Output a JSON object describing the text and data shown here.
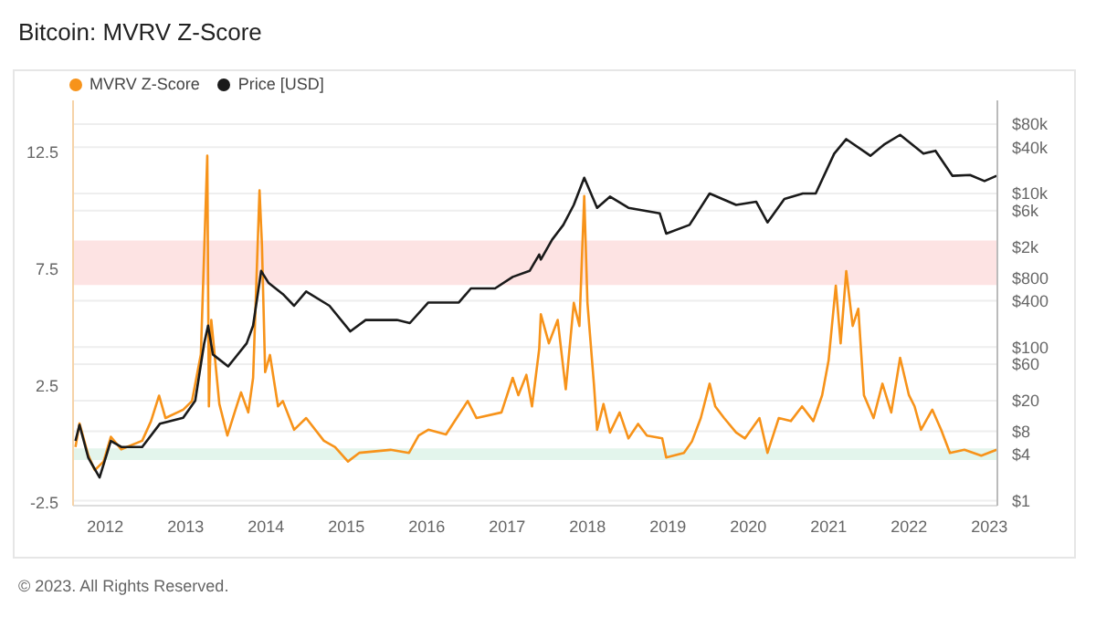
{
  "chart_data": {
    "type": "line",
    "title": "Bitcoin: MVRV Z-Score",
    "annotations": [
      "© 2023. All Rights Reserved."
    ],
    "xlim": [
      2011.6,
      2023.1
    ],
    "xticks": [
      2012,
      2013,
      2014,
      2015,
      2016,
      2017,
      2018,
      2019,
      2020,
      2021,
      2022,
      2023
    ],
    "ylim": [
      -2.65,
      14.7
    ],
    "yticks": [
      -2.5,
      2.5,
      7.5,
      12.5
    ],
    "y2lim": [
      0.86,
      163000
    ],
    "y2ticks": [
      {
        "value": 1,
        "label": "$1"
      },
      {
        "value": 4,
        "label": "$4"
      },
      {
        "value": 8,
        "label": "$8"
      },
      {
        "value": 20,
        "label": "$20"
      },
      {
        "value": 60,
        "label": "$60"
      },
      {
        "value": 100,
        "label": "$100"
      },
      {
        "value": 400,
        "label": "$400"
      },
      {
        "value": 800,
        "label": "$800"
      },
      {
        "value": 2000,
        "label": "$2k"
      },
      {
        "value": 6000,
        "label": "$6k"
      },
      {
        "value": 10000,
        "label": "$10k"
      },
      {
        "value": 40000,
        "label": "$40k"
      },
      {
        "value": 80000,
        "label": "$80k"
      }
    ],
    "log": "y2",
    "grid": "y",
    "legend": "top left",
    "marker": "none",
    "line_style": "solid",
    "bands": [
      {
        "axis": "y",
        "from": 6.8,
        "to": 8.7,
        "color": "#fde3e3"
      },
      {
        "axis": "y",
        "from": -0.7,
        "to": -0.2,
        "color": "#e3f5ec"
      }
    ],
    "series": [
      {
        "name": "MVRV Z-Score",
        "color": "#f7931a",
        "axis": "y",
        "x": [
          2011.63,
          2011.68,
          2011.79,
          2011.87,
          2011.98,
          2012.07,
          2012.2,
          2012.46,
          2012.57,
          2012.67,
          2012.75,
          2012.97,
          2013.08,
          2013.19,
          2013.27,
          2013.29,
          2013.32,
          2013.42,
          2013.52,
          2013.61,
          2013.69,
          2013.78,
          2013.84,
          2013.92,
          2013.95,
          2013.99,
          2014.05,
          2014.15,
          2014.21,
          2014.35,
          2014.5,
          2014.72,
          2014.86,
          2015.02,
          2015.16,
          2015.55,
          2015.78,
          2015.9,
          2016.02,
          2016.24,
          2016.51,
          2016.62,
          2016.93,
          2017.07,
          2017.14,
          2017.24,
          2017.31,
          2017.4,
          2017.42,
          2017.52,
          2017.63,
          2017.73,
          2017.83,
          2017.9,
          2017.96,
          2018.0,
          2018.08,
          2018.12,
          2018.2,
          2018.28,
          2018.4,
          2018.51,
          2018.63,
          2018.74,
          2018.93,
          2018.98,
          2019.2,
          2019.3,
          2019.41,
          2019.52,
          2019.59,
          2019.7,
          2019.85,
          2019.96,
          2020.14,
          2020.24,
          2020.38,
          2020.53,
          2020.67,
          2020.81,
          2020.92,
          2021.0,
          2021.09,
          2021.15,
          2021.22,
          2021.3,
          2021.37,
          2021.44,
          2021.56,
          2021.67,
          2021.78,
          2021.89,
          2022.0,
          2022.07,
          2022.15,
          2022.29,
          2022.4,
          2022.51,
          2022.69,
          2022.9,
          2023.09
        ],
        "values": [
          -0.14,
          0.87,
          -0.5,
          -1.13,
          -0.76,
          0.3,
          -0.24,
          0.13,
          0.97,
          2.06,
          1.1,
          1.46,
          1.83,
          3.83,
          12.33,
          1.6,
          5.3,
          1.7,
          0.35,
          1.34,
          2.2,
          1.34,
          2.82,
          10.85,
          8.5,
          3.07,
          3.8,
          1.6,
          1.83,
          0.6,
          1.1,
          0.13,
          -0.14,
          -0.76,
          -0.39,
          -0.26,
          -0.39,
          0.35,
          0.6,
          0.4,
          1.83,
          1.1,
          1.34,
          2.82,
          2.08,
          2.95,
          1.6,
          4.06,
          5.54,
          4.3,
          5.3,
          2.33,
          6.03,
          5.04,
          10.6,
          6.03,
          2.57,
          0.6,
          1.7,
          0.48,
          1.34,
          0.23,
          0.85,
          0.35,
          0.23,
          -0.59,
          -0.39,
          0.1,
          1.1,
          2.57,
          1.6,
          1.1,
          0.48,
          0.23,
          1.1,
          -0.39,
          1.1,
          0.97,
          1.6,
          0.97,
          2.08,
          3.56,
          6.77,
          4.3,
          7.39,
          5.04,
          5.78,
          2.08,
          1.1,
          2.57,
          1.34,
          3.68,
          2.08,
          1.6,
          0.6,
          1.46,
          0.6,
          -0.39,
          -0.26,
          -0.51,
          -0.26
        ]
      },
      {
        "name": "Price [USD]",
        "color": "#1a1a1a",
        "axis": "y2",
        "x": [
          2011.63,
          2011.68,
          2011.79,
          2011.93,
          2012.07,
          2012.2,
          2012.46,
          2012.68,
          2012.97,
          2013.12,
          2013.23,
          2013.28,
          2013.34,
          2013.53,
          2013.76,
          2013.84,
          2013.94,
          2014.03,
          2014.21,
          2014.35,
          2014.5,
          2014.79,
          2015.05,
          2015.24,
          2015.63,
          2015.79,
          2016.02,
          2016.4,
          2016.55,
          2016.85,
          2017.07,
          2017.28,
          2017.4,
          2017.42,
          2017.56,
          2017.7,
          2017.83,
          2017.96,
          2018.12,
          2018.28,
          2018.51,
          2018.9,
          2018.98,
          2019.27,
          2019.52,
          2019.85,
          2020.1,
          2020.24,
          2020.45,
          2020.68,
          2020.84,
          2021.07,
          2021.22,
          2021.52,
          2021.7,
          2021.89,
          2022.18,
          2022.33,
          2022.54,
          2022.76,
          2022.94,
          2023.09
        ],
        "values": [
          6,
          9.7,
          3.6,
          2,
          6,
          5,
          5,
          10,
          12,
          20,
          110,
          190,
          80,
          56,
          112,
          190,
          980,
          690,
          490,
          345,
          530,
          345,
          160,
          225,
          225,
          205,
          380,
          380,
          580,
          580,
          820,
          980,
          1600,
          1380,
          2500,
          3900,
          7100,
          16000,
          6500,
          9100,
          6500,
          5500,
          3000,
          3900,
          10000,
          7100,
          7800,
          4200,
          8500,
          10000,
          10000,
          33000,
          51000,
          31000,
          44000,
          58000,
          33000,
          36000,
          17000,
          17400,
          14500,
          17000
        ]
      }
    ]
  }
}
